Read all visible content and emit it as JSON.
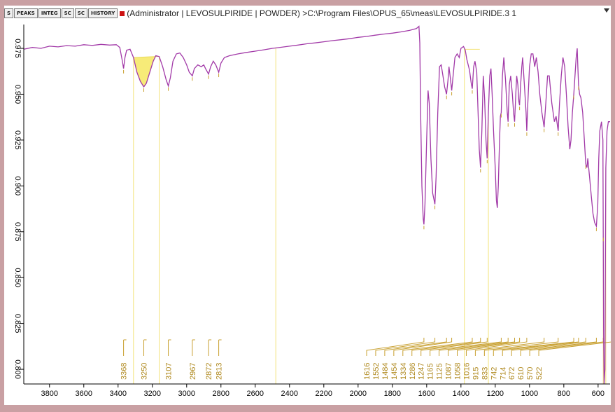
{
  "toolbar": {
    "buttons": [
      "S",
      "PEAKS",
      "INTEG",
      "SC",
      "SC",
      "HISTORY"
    ],
    "title": "(Administrator | LEVOSULPIRIDE | POWDER) >C:\\Program Files\\OPUS_65\\meas\\LEVOSULPIRIDE.3  1"
  },
  "chart_data": {
    "type": "line",
    "title": "",
    "xlabel": "",
    "ylabel": "",
    "xlim": [
      3950,
      530
    ],
    "ylim": [
      0.792,
      0.988
    ],
    "x_ticks": [
      3800,
      3600,
      3400,
      3200,
      3000,
      2800,
      2600,
      2400,
      2200,
      2000,
      1800,
      1600,
      1400,
      1200,
      1000,
      800,
      600
    ],
    "y_ticks": [
      0.8,
      0.825,
      0.85,
      0.875,
      0.9,
      0.925,
      0.95,
      0.975
    ],
    "y_tick_labels": [
      "0.800",
      "0.825",
      "0.850",
      "0.875",
      "0.900",
      "0.925",
      "0.950",
      "0.975"
    ],
    "series": [
      {
        "name": "",
        "color": "#a23aa8",
        "points": [
          [
            3950,
            0.9745
          ],
          [
            3900,
            0.9755
          ],
          [
            3850,
            0.975
          ],
          [
            3800,
            0.9762
          ],
          [
            3750,
            0.9758
          ],
          [
            3700,
            0.9765
          ],
          [
            3650,
            0.9762
          ],
          [
            3600,
            0.977
          ],
          [
            3550,
            0.9766
          ],
          [
            3500,
            0.9772
          ],
          [
            3450,
            0.9768
          ],
          [
            3410,
            0.977
          ],
          [
            3390,
            0.9755
          ],
          [
            3375,
            0.968
          ],
          [
            3368,
            0.964
          ],
          [
            3360,
            0.97
          ],
          [
            3350,
            0.974
          ],
          [
            3330,
            0.9745
          ],
          [
            3310,
            0.97
          ],
          [
            3290,
            0.962
          ],
          [
            3270,
            0.957
          ],
          [
            3250,
            0.954
          ],
          [
            3235,
            0.956
          ],
          [
            3215,
            0.962
          ],
          [
            3195,
            0.968
          ],
          [
            3180,
            0.971
          ],
          [
            3160,
            0.9705
          ],
          [
            3140,
            0.965
          ],
          [
            3120,
            0.958
          ],
          [
            3107,
            0.9545
          ],
          [
            3095,
            0.959
          ],
          [
            3080,
            0.968
          ],
          [
            3060,
            0.972
          ],
          [
            3040,
            0.9725
          ],
          [
            3020,
            0.97
          ],
          [
            3000,
            0.966
          ],
          [
            2985,
            0.962
          ],
          [
            2967,
            0.96
          ],
          [
            2955,
            0.964
          ],
          [
            2935,
            0.966
          ],
          [
            2915,
            0.965
          ],
          [
            2900,
            0.966
          ],
          [
            2890,
            0.964
          ],
          [
            2872,
            0.961
          ],
          [
            2860,
            0.965
          ],
          [
            2845,
            0.968
          ],
          [
            2830,
            0.966
          ],
          [
            2813,
            0.962
          ],
          [
            2800,
            0.967
          ],
          [
            2780,
            0.97
          ],
          [
            2750,
            0.971
          ],
          [
            2700,
            0.972
          ],
          [
            2650,
            0.9728
          ],
          [
            2600,
            0.9735
          ],
          [
            2550,
            0.9742
          ],
          [
            2500,
            0.975
          ],
          [
            2450,
            0.9756
          ],
          [
            2400,
            0.9762
          ],
          [
            2350,
            0.9768
          ],
          [
            2300,
            0.9775
          ],
          [
            2250,
            0.978
          ],
          [
            2200,
            0.9786
          ],
          [
            2150,
            0.9792
          ],
          [
            2100,
            0.9797
          ],
          [
            2050,
            0.9803
          ],
          [
            2000,
            0.981
          ],
          [
            1950,
            0.9815
          ],
          [
            1900,
            0.9822
          ],
          [
            1850,
            0.9828
          ],
          [
            1800,
            0.9833
          ],
          [
            1750,
            0.984
          ],
          [
            1700,
            0.9848
          ],
          [
            1660,
            0.9858
          ],
          [
            1645,
            0.987
          ],
          [
            1640,
            0.978
          ],
          [
            1635,
            0.94
          ],
          [
            1628,
            0.9
          ],
          [
            1620,
            0.882
          ],
          [
            1616,
            0.879
          ],
          [
            1610,
            0.89
          ],
          [
            1600,
            0.925
          ],
          [
            1592,
            0.952
          ],
          [
            1585,
            0.945
          ],
          [
            1575,
            0.915
          ],
          [
            1565,
            0.896
          ],
          [
            1552,
            0.89
          ],
          [
            1545,
            0.905
          ],
          [
            1535,
            0.94
          ],
          [
            1525,
            0.965
          ],
          [
            1515,
            0.966
          ],
          [
            1505,
            0.96
          ],
          [
            1495,
            0.954
          ],
          [
            1484,
            0.95
          ],
          [
            1475,
            0.958
          ],
          [
            1470,
            0.965
          ],
          [
            1462,
            0.959
          ],
          [
            1454,
            0.952
          ],
          [
            1446,
            0.96
          ],
          [
            1435,
            0.97
          ],
          [
            1422,
            0.972
          ],
          [
            1410,
            0.97
          ],
          [
            1400,
            0.975
          ],
          [
            1385,
            0.976
          ],
          [
            1375,
            0.974
          ],
          [
            1366,
            0.969
          ],
          [
            1350,
            0.963
          ],
          [
            1340,
            0.956
          ],
          [
            1334,
            0.953
          ],
          [
            1326,
            0.965
          ],
          [
            1318,
            0.968
          ],
          [
            1308,
            0.962
          ],
          [
            1300,
            0.94
          ],
          [
            1293,
            0.92
          ],
          [
            1286,
            0.91
          ],
          [
            1278,
            0.93
          ],
          [
            1270,
            0.96
          ],
          [
            1262,
            0.948
          ],
          [
            1254,
            0.925
          ],
          [
            1247,
            0.915
          ],
          [
            1240,
            0.94
          ],
          [
            1232,
            0.96
          ],
          [
            1225,
            0.964
          ],
          [
            1218,
            0.95
          ],
          [
            1210,
            0.93
          ],
          [
            1200,
            0.91
          ],
          [
            1193,
            0.892
          ],
          [
            1188,
            0.888
          ],
          [
            1182,
            0.9
          ],
          [
            1175,
            0.925
          ],
          [
            1170,
            0.938
          ],
          [
            1165,
            0.94
          ],
          [
            1158,
            0.96
          ],
          [
            1150,
            0.97
          ],
          [
            1140,
            0.958
          ],
          [
            1130,
            0.94
          ],
          [
            1125,
            0.935
          ],
          [
            1118,
            0.955
          ],
          [
            1110,
            0.96
          ],
          [
            1100,
            0.95
          ],
          [
            1093,
            0.94
          ],
          [
            1087,
            0.935
          ],
          [
            1080,
            0.95
          ],
          [
            1075,
            0.96
          ],
          [
            1068,
            0.955
          ],
          [
            1062,
            0.946
          ],
          [
            1058,
            0.944
          ],
          [
            1052,
            0.955
          ],
          [
            1045,
            0.965
          ],
          [
            1040,
            0.97
          ],
          [
            1030,
            0.955
          ],
          [
            1020,
            0.94
          ],
          [
            1016,
            0.93
          ],
          [
            1010,
            0.945
          ],
          [
            1000,
            0.965
          ],
          [
            990,
            0.972
          ],
          [
            980,
            0.972
          ],
          [
            970,
            0.965
          ],
          [
            960,
            0.97
          ],
          [
            950,
            0.962
          ],
          [
            940,
            0.95
          ],
          [
            928,
            0.94
          ],
          [
            915,
            0.932
          ],
          [
            905,
            0.945
          ],
          [
            895,
            0.96
          ],
          [
            885,
            0.96
          ],
          [
            870,
            0.945
          ],
          [
            855,
            0.935
          ],
          [
            845,
            0.938
          ],
          [
            833,
            0.93
          ],
          [
            825,
            0.945
          ],
          [
            815,
            0.96
          ],
          [
            805,
            0.97
          ],
          [
            795,
            0.965
          ],
          [
            785,
            0.95
          ],
          [
            775,
            0.932
          ],
          [
            765,
            0.92
          ],
          [
            758,
            0.925
          ],
          [
            750,
            0.94
          ],
          [
            742,
            0.95
          ],
          [
            735,
            0.96
          ],
          [
            728,
            0.97
          ],
          [
            722,
            0.975
          ],
          [
            718,
            0.965
          ],
          [
            714,
            0.955
          ],
          [
            708,
            0.95
          ],
          [
            700,
            0.948
          ],
          [
            690,
            0.94
          ],
          [
            680,
            0.925
          ],
          [
            672,
            0.912
          ],
          [
            665,
            0.91
          ],
          [
            660,
            0.915
          ],
          [
            650,
            0.905
          ],
          [
            640,
            0.895
          ],
          [
            630,
            0.885
          ],
          [
            620,
            0.88
          ],
          [
            610,
            0.878
          ],
          [
            602,
            0.89
          ],
          [
            596,
            0.915
          ],
          [
            590,
            0.93
          ],
          [
            580,
            0.935
          ],
          [
            572,
            0.925
          ],
          [
            568,
            0.82
          ],
          [
            565,
            0.792
          ],
          [
            560,
            0.8
          ],
          [
            555,
            0.91
          ],
          [
            548,
            0.93
          ],
          [
            540,
            0.935
          ],
          [
            530,
            0.935
          ]
        ]
      }
    ],
    "peaks": [
      3368,
      3250,
      3107,
      2967,
      2872,
      2813,
      1616,
      1552,
      1484,
      1454,
      1334,
      1286,
      1247,
      1165,
      1125,
      1087,
      1058,
      1016,
      915,
      833,
      742,
      714,
      672,
      610,
      570,
      522
    ],
    "peak_labels": [
      "3368",
      "3250",
      "3107",
      "2967",
      "2872",
      "2813",
      "1616",
      "1552",
      "1484",
      "1454",
      "1334",
      "1286",
      "1247",
      "1165",
      "1125",
      "1087",
      "1058",
      "1016",
      "915",
      "833",
      "742",
      "714",
      "672",
      "610",
      "570",
      "522"
    ],
    "integration_region": {
      "from": 3310,
      "to": 3165
    },
    "marker_lines": [
      3310,
      3160,
      2480,
      1380,
      1240,
      570,
      555
    ],
    "grid": false,
    "legend": "none"
  }
}
